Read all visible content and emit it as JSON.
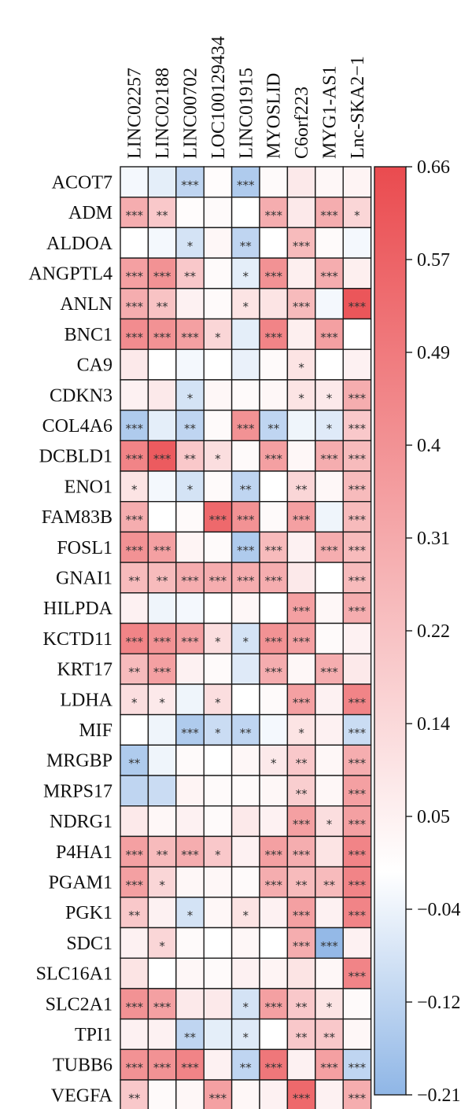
{
  "chart_data": {
    "type": "heatmap",
    "columns": [
      "LINC02257",
      "LINC02188",
      "LINC00702",
      "LOC100129434",
      "LINC01915",
      "MYOSLID",
      "C6orf223",
      "MYG1-AS1",
      "Lnc-SKA2−1"
    ],
    "rows": [
      "ACOT7",
      "ADM",
      "ALDOA",
      "ANGPTL4",
      "ANLN",
      "BNC1",
      "CA9",
      "CDKN3",
      "COL4A6",
      "DCBLD1",
      "ENO1",
      "FAM83B",
      "FOSL1",
      "GNAI1",
      "HILPDA",
      "KCTD11",
      "KRT17",
      "LDHA",
      "MIF",
      "MRGBP",
      "MRPS17",
      "NDRG1",
      "P4HA1",
      "PGAM1",
      "PGK1",
      "SDC1",
      "SLC16A1",
      "SLC2A1",
      "TPI1",
      "TUBB6",
      "VEGFA"
    ],
    "values": [
      [
        -0.02,
        -0.05,
        -0.12,
        0.01,
        -0.15,
        0.02,
        0.08,
        0.03,
        0.04
      ],
      [
        0.3,
        0.2,
        0.01,
        0.02,
        0.0,
        0.3,
        0.08,
        0.3,
        0.15
      ],
      [
        0.0,
        -0.02,
        -0.08,
        0.03,
        -0.12,
        0.0,
        0.25,
        0.02,
        -0.02
      ],
      [
        0.35,
        0.4,
        0.2,
        0.02,
        -0.05,
        0.4,
        0.06,
        0.3,
        0.06
      ],
      [
        0.3,
        0.22,
        0.05,
        0.02,
        0.1,
        0.1,
        0.25,
        -0.02,
        0.62
      ],
      [
        0.42,
        0.4,
        0.35,
        0.15,
        -0.05,
        0.45,
        0.06,
        0.35,
        0.0
      ],
      [
        0.08,
        0.0,
        -0.02,
        0.0,
        -0.04,
        0.02,
        0.1,
        0.0,
        0.05
      ],
      [
        0.05,
        0.08,
        -0.08,
        0.03,
        0.02,
        0.03,
        0.1,
        0.08,
        0.3
      ],
      [
        -0.15,
        -0.05,
        -0.12,
        0.02,
        0.4,
        -0.12,
        -0.03,
        -0.06,
        0.2
      ],
      [
        0.45,
        0.6,
        0.2,
        0.12,
        0.02,
        0.35,
        0.03,
        0.3,
        0.25
      ],
      [
        0.1,
        -0.02,
        -0.08,
        0.02,
        -0.12,
        0.0,
        0.15,
        0.03,
        0.25
      ],
      [
        0.3,
        0.0,
        0.02,
        0.55,
        0.4,
        0.02,
        0.35,
        -0.03,
        0.25
      ],
      [
        0.4,
        0.35,
        0.04,
        0.02,
        -0.15,
        0.25,
        0.05,
        0.3,
        0.25
      ],
      [
        0.25,
        0.25,
        0.3,
        0.3,
        0.3,
        0.3,
        0.08,
        0.0,
        0.25
      ],
      [
        0.05,
        -0.03,
        -0.02,
        0.0,
        0.03,
        0.0,
        0.35,
        0.03,
        0.3
      ],
      [
        0.45,
        0.4,
        0.35,
        0.12,
        -0.08,
        0.4,
        0.35,
        0.02,
        0.05
      ],
      [
        0.25,
        0.35,
        0.05,
        0.02,
        -0.06,
        0.3,
        0.03,
        0.3,
        0.08
      ],
      [
        0.12,
        0.08,
        -0.03,
        0.12,
        0.0,
        0.02,
        0.35,
        0.05,
        0.45
      ],
      [
        0.0,
        -0.03,
        -0.15,
        -0.1,
        -0.12,
        -0.02,
        0.1,
        0.05,
        -0.1
      ],
      [
        -0.15,
        -0.03,
        0.02,
        0.0,
        0.03,
        0.08,
        0.2,
        0.03,
        0.3
      ],
      [
        -0.12,
        -0.1,
        0.04,
        0.02,
        0.02,
        0.03,
        0.18,
        0.03,
        0.35
      ],
      [
        0.08,
        0.03,
        0.05,
        0.02,
        0.08,
        0.05,
        0.35,
        0.12,
        0.35
      ],
      [
        0.35,
        0.25,
        0.3,
        0.2,
        0.05,
        0.35,
        0.3,
        0.1,
        0.45
      ],
      [
        0.35,
        0.15,
        0.03,
        0.03,
        0.02,
        0.3,
        0.25,
        0.25,
        0.45
      ],
      [
        0.2,
        0.05,
        -0.08,
        0.03,
        0.1,
        0.05,
        0.35,
        0.05,
        0.45
      ],
      [
        0.05,
        0.15,
        0.02,
        0.0,
        0.03,
        0.0,
        0.3,
        -0.2,
        0.05
      ],
      [
        0.1,
        0.0,
        0.03,
        0.02,
        0.05,
        0.04,
        0.1,
        0.03,
        0.45
      ],
      [
        0.4,
        0.35,
        0.08,
        0.08,
        -0.08,
        0.35,
        0.2,
        0.1,
        0.02
      ],
      [
        0.05,
        0.05,
        -0.12,
        -0.05,
        -0.06,
        0.0,
        0.2,
        0.2,
        0.03
      ],
      [
        0.4,
        0.4,
        0.45,
        0.05,
        -0.12,
        0.5,
        0.05,
        0.35,
        -0.12
      ],
      [
        0.2,
        0.02,
        0.03,
        0.35,
        0.03,
        0.05,
        0.55,
        0.05,
        0.3
      ]
    ],
    "significance": [
      [
        "",
        "",
        "***",
        "",
        "***",
        "",
        "",
        "",
        ""
      ],
      [
        "***",
        "**",
        "",
        "",
        "",
        "***",
        "",
        "***",
        "*"
      ],
      [
        "",
        "",
        "*",
        "",
        "**",
        "",
        "***",
        "",
        ""
      ],
      [
        "***",
        "***",
        "**",
        "",
        "*",
        "***",
        "",
        "***",
        ""
      ],
      [
        "***",
        "**",
        "",
        "",
        "*",
        "",
        "***",
        "",
        "***"
      ],
      [
        "***",
        "***",
        "***",
        "*",
        "",
        "***",
        "",
        "***",
        ""
      ],
      [
        "",
        "",
        "",
        "",
        "",
        "",
        "*",
        "",
        ""
      ],
      [
        "",
        "",
        "*",
        "",
        "",
        "",
        "*",
        "*",
        "***"
      ],
      [
        "***",
        "",
        "**",
        "",
        "***",
        "**",
        "",
        "*",
        "***"
      ],
      [
        "***",
        "***",
        "**",
        "*",
        "",
        "***",
        "",
        "***",
        "***"
      ],
      [
        "*",
        "",
        "*",
        "",
        "**",
        "",
        "**",
        "",
        "***"
      ],
      [
        "***",
        "",
        "",
        "***",
        "***",
        "",
        "***",
        "",
        "***"
      ],
      [
        "***",
        "***",
        "",
        "",
        "***",
        "***",
        "",
        "***",
        "***"
      ],
      [
        "**",
        "**",
        "***",
        "***",
        "***",
        "***",
        "",
        "",
        "***"
      ],
      [
        "",
        "",
        "",
        "",
        "",
        "",
        "***",
        "",
        "***"
      ],
      [
        "***",
        "***",
        "***",
        "*",
        "*",
        "***",
        "***",
        "",
        ""
      ],
      [
        "**",
        "***",
        "",
        "",
        "",
        "***",
        "",
        "***",
        ""
      ],
      [
        "*",
        "*",
        "",
        "*",
        "",
        "",
        "***",
        "",
        "***"
      ],
      [
        "",
        "",
        "***",
        "*",
        "**",
        "",
        "*",
        "",
        "***"
      ],
      [
        "**",
        "",
        "",
        "",
        "",
        "*",
        "**",
        "",
        "***"
      ],
      [
        "",
        "",
        "",
        "",
        "",
        "",
        "**",
        "",
        "***"
      ],
      [
        "",
        "",
        "",
        "",
        "",
        "",
        "***",
        "*",
        "***"
      ],
      [
        "***",
        "**",
        "***",
        "*",
        "",
        "***",
        "***",
        "",
        "***"
      ],
      [
        "***",
        "*",
        "",
        "",
        "",
        "***",
        "**",
        "**",
        "***"
      ],
      [
        "**",
        "",
        "*",
        "",
        "*",
        "",
        "***",
        "",
        "***"
      ],
      [
        "",
        "*",
        "",
        "",
        "",
        "",
        "***",
        "***",
        ""
      ],
      [
        "",
        "",
        "",
        "",
        "",
        "",
        "",
        "",
        "***"
      ],
      [
        "***",
        "***",
        "",
        "",
        "*",
        "***",
        "**",
        "*",
        ""
      ],
      [
        "",
        "",
        "**",
        "",
        "*",
        "",
        "**",
        "**",
        ""
      ],
      [
        "***",
        "***",
        "***",
        "",
        "**",
        "***",
        "",
        "***",
        "***"
      ],
      [
        "**",
        "",
        "",
        "***",
        "",
        "",
        "***",
        "",
        "***"
      ]
    ],
    "colorbar": {
      "ticks": [
        "0.66",
        "0.57",
        "0.49",
        "0.4",
        "0.31",
        "0.22",
        "0.14",
        "0.05",
        "−0.04",
        "−0.12",
        "−0.21"
      ],
      "min": -0.21,
      "max": 0.66
    },
    "colors": {
      "low": "#8fb6e6",
      "mid": "#ffffff",
      "high": "#ea4b4f"
    }
  }
}
